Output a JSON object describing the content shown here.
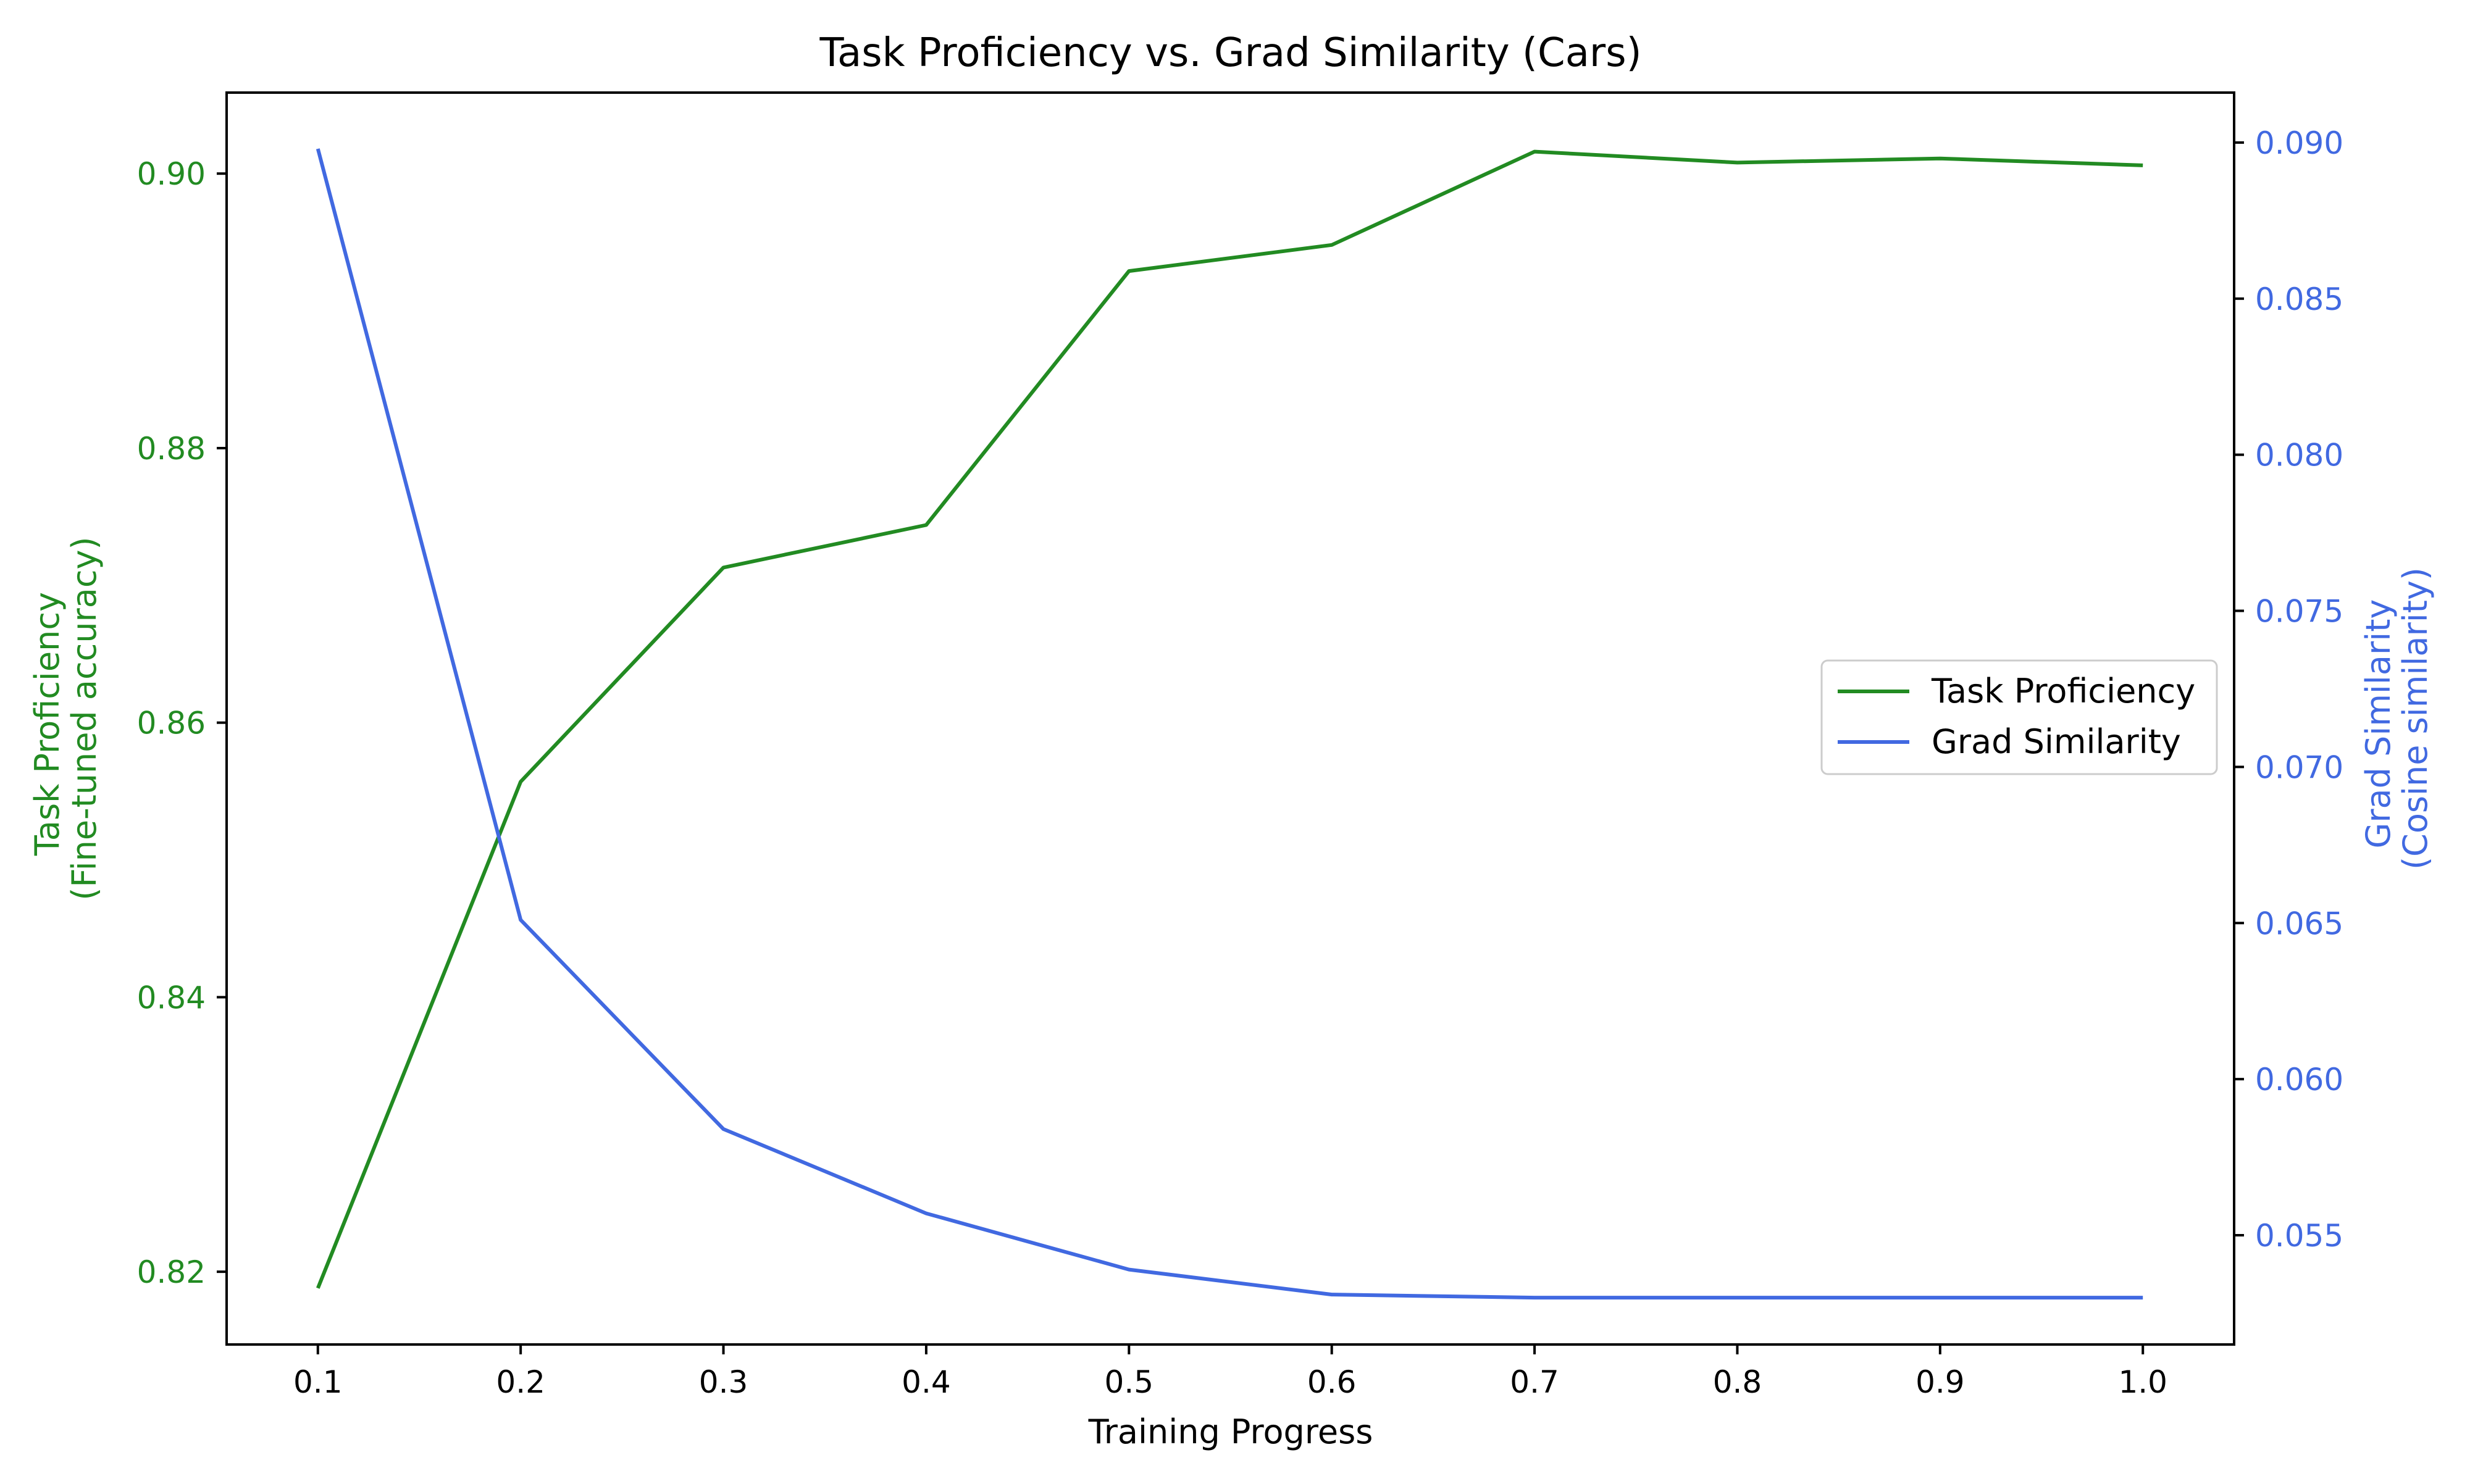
{
  "chart_data": {
    "type": "line",
    "title": "Task Proficiency vs. Grad Similarity (Cars)",
    "xlabel": "Training Progress",
    "ylabel_left_line1": "Task Proficiency",
    "ylabel_left_line2": "(Fine-tuned accuracy)",
    "ylabel_right_line1": "Grad Similarity",
    "ylabel_right_line2": "(Cosine similarity)",
    "x": [
      0.1,
      0.2,
      0.3,
      0.4,
      0.5,
      0.6,
      0.7,
      0.8,
      0.9,
      1.0
    ],
    "xlim": [
      0.055,
      1.045
    ],
    "xticks": [
      "0.1",
      "0.2",
      "0.3",
      "0.4",
      "0.5",
      "0.6",
      "0.7",
      "0.8",
      "0.9",
      "1.0"
    ],
    "ylim_left": [
      0.8147,
      0.9059
    ],
    "yticks_left": [
      "0.82",
      "0.84",
      "0.86",
      "0.88",
      "0.90"
    ],
    "ylim_right": [
      0.0515,
      0.0916
    ],
    "yticks_right": [
      "0.055",
      "0.060",
      "0.065",
      "0.070",
      "0.075",
      "0.080",
      "0.085",
      "0.090"
    ],
    "grid": false,
    "legend_position": "center-right",
    "series": [
      {
        "name": "Task Proficiency",
        "axis": "left",
        "color": "#228b22",
        "values": [
          0.8188,
          0.8557,
          0.8713,
          0.8744,
          0.8929,
          0.8948,
          0.9016,
          0.9008,
          0.9011,
          0.9006
        ]
      },
      {
        "name": "Grad Similarity",
        "axis": "right",
        "color": "#4169e1",
        "values": [
          0.0898,
          0.0651,
          0.0584,
          0.0557,
          0.0539,
          0.0531,
          0.053,
          0.053,
          0.053,
          0.053
        ]
      }
    ],
    "colors": {
      "left_axis": "#228b22",
      "right_axis": "#4169e1",
      "text": "#000000",
      "legend_border": "#cccccc"
    }
  }
}
